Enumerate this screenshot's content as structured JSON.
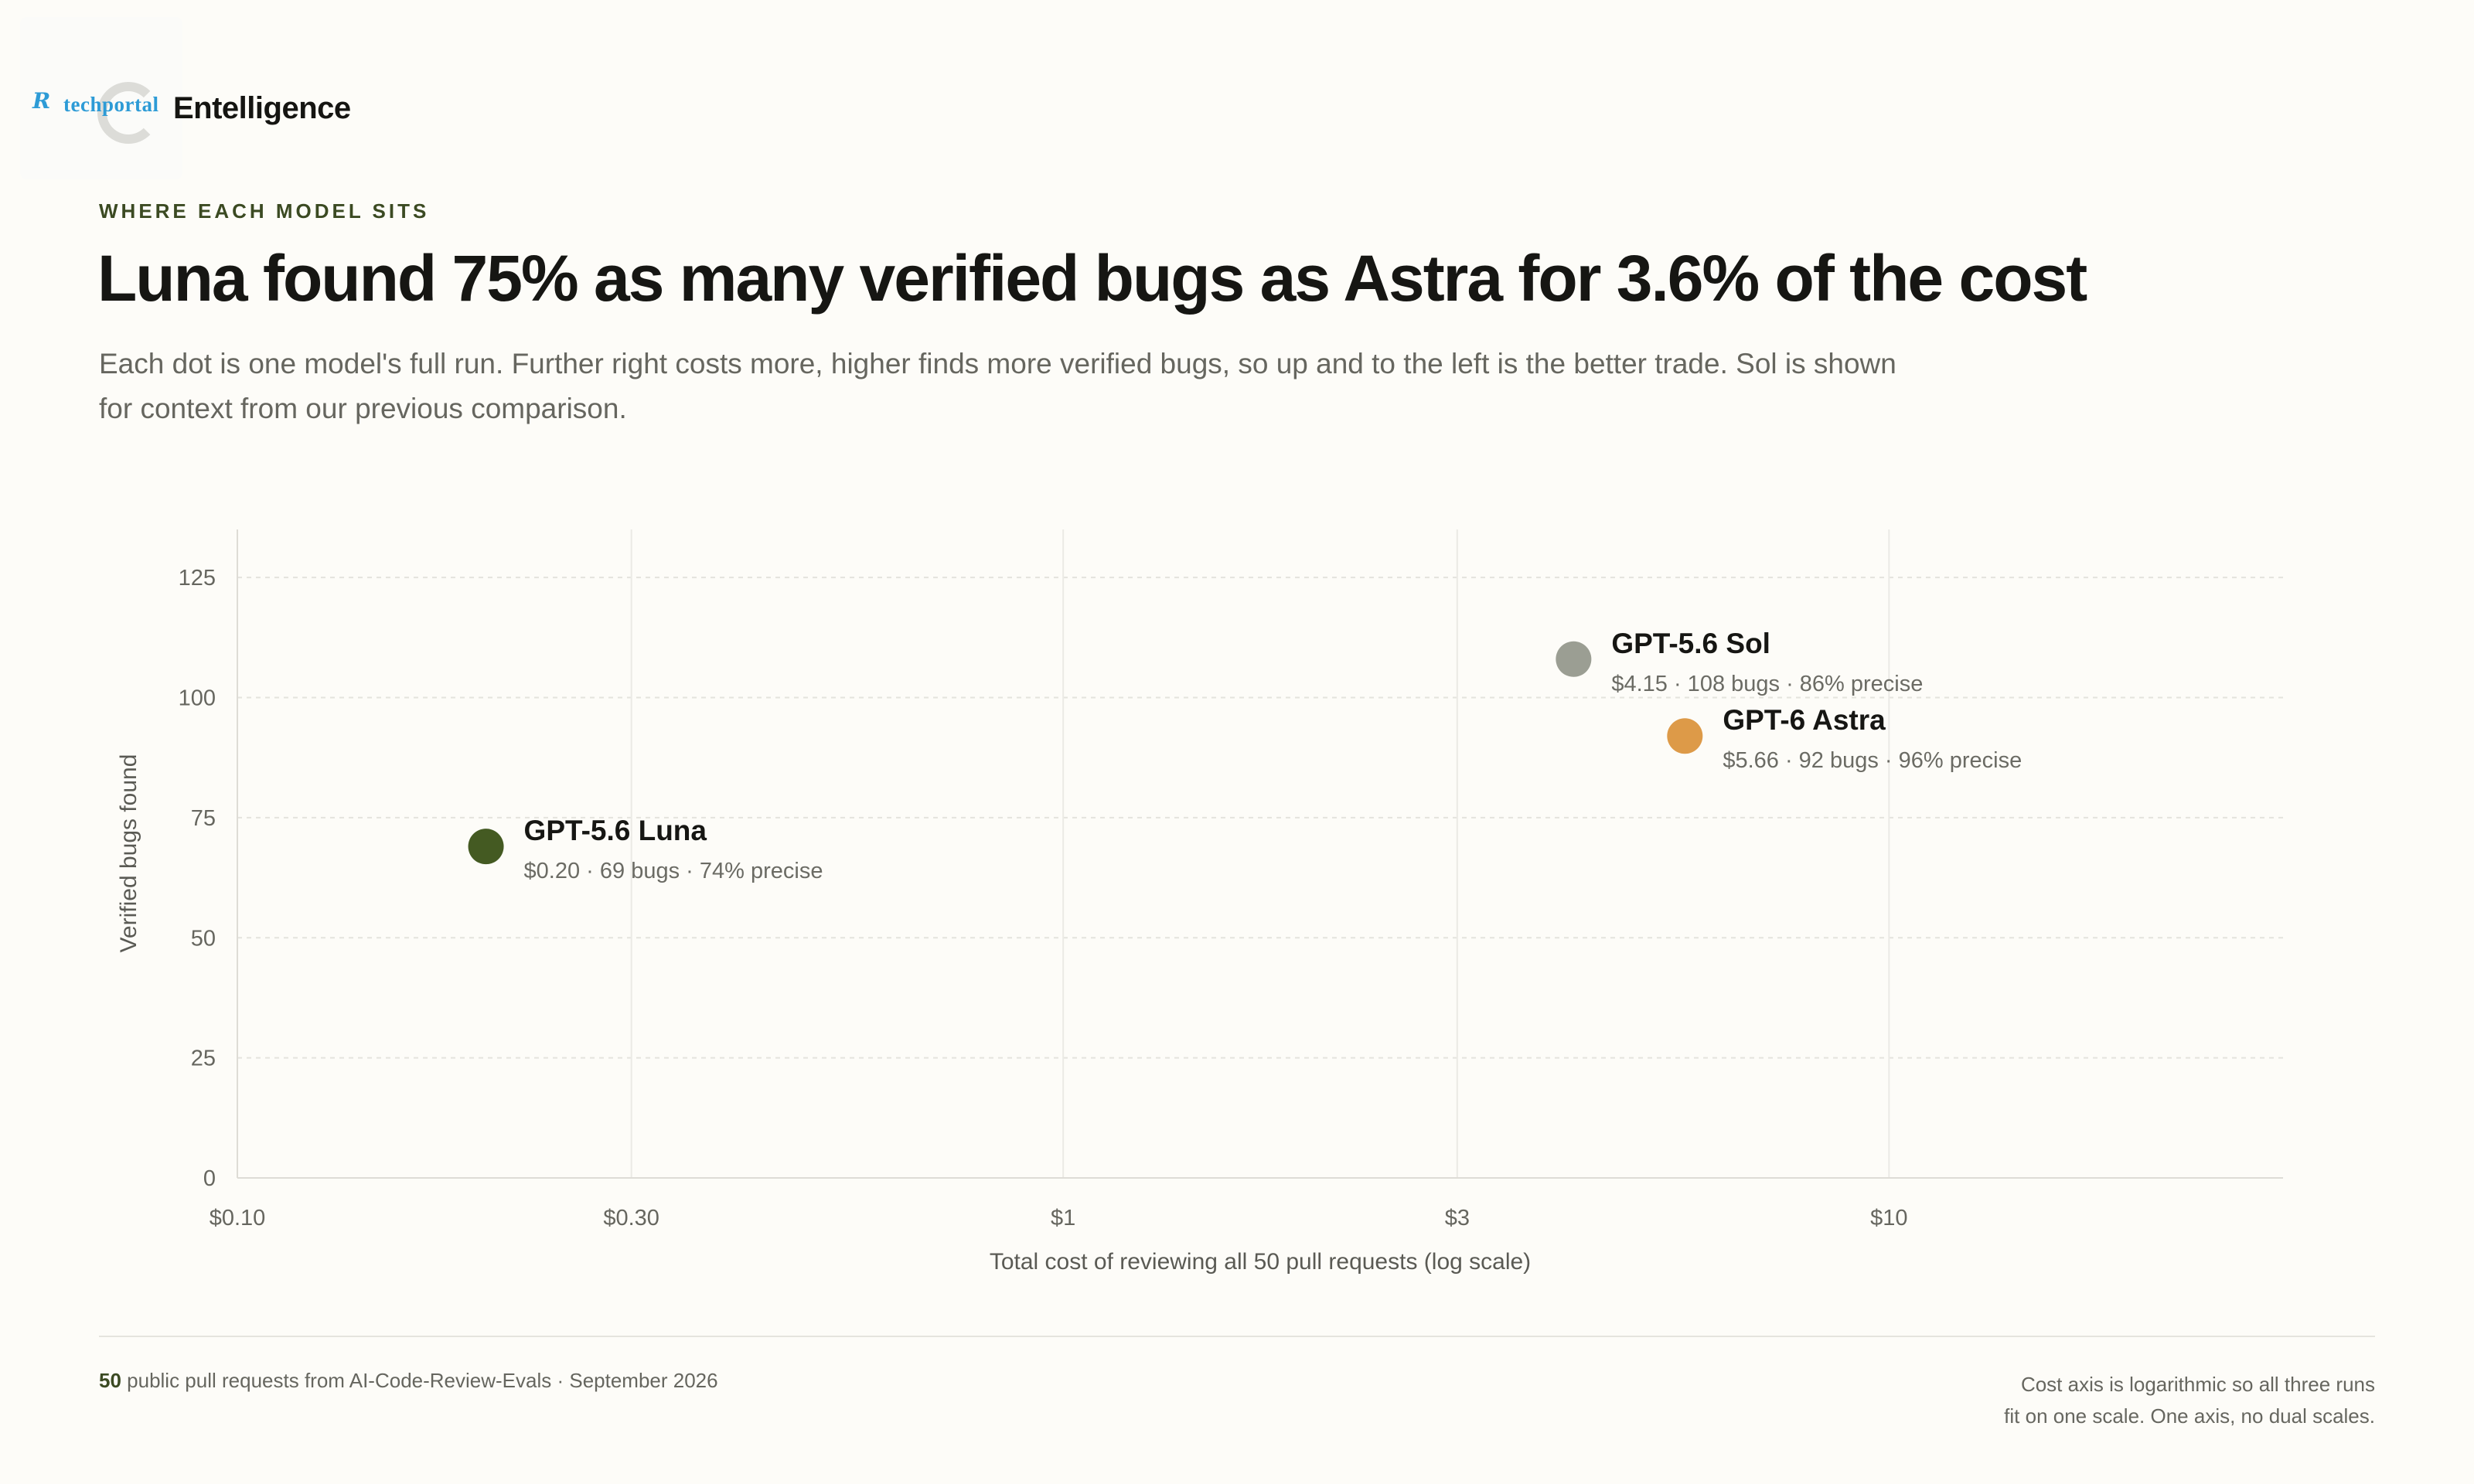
{
  "brand": {
    "mark": "R",
    "portal": "techportal",
    "name": "Entelligence"
  },
  "eyebrow": "WHERE EACH MODEL SITS",
  "headline": "Luna found 75% as many verified bugs as Astra for 3.6% of the cost",
  "subhead": "Each dot is one model's full run. Further right costs more, higher finds more verified bugs, so up and to the left is the better trade. Sol is shown for context from our previous comparison.",
  "chart_data": {
    "type": "scatter",
    "title": "",
    "xlabel": "Total cost of reviewing all 50 pull requests (log scale)",
    "ylabel": "Verified bugs found",
    "xscale": "log",
    "xlim": [
      0.1,
      30
    ],
    "ylim": [
      0,
      135
    ],
    "grid": true,
    "x_ticks": [
      {
        "value": 0.1,
        "label": "$0.10"
      },
      {
        "value": 0.3,
        "label": "$0.30"
      },
      {
        "value": 1,
        "label": "$1"
      },
      {
        "value": 3,
        "label": "$3"
      },
      {
        "value": 10,
        "label": "$10"
      }
    ],
    "y_ticks": [
      {
        "value": 0,
        "label": "0"
      },
      {
        "value": 25,
        "label": "25"
      },
      {
        "value": 50,
        "label": "50"
      },
      {
        "value": 75,
        "label": "75"
      },
      {
        "value": 100,
        "label": "100"
      },
      {
        "value": 125,
        "label": "125"
      }
    ],
    "points": [
      {
        "name": "GPT-5.6 Luna",
        "x": 0.2,
        "y": 69,
        "detail": "$0.20 · 69 bugs · 74% precise",
        "color": "#445a22"
      },
      {
        "name": "GPT-5.6 Sol",
        "x": 4.15,
        "y": 108,
        "detail": "$4.15 · 108 bugs · 86% precise",
        "color": "#9b9e93"
      },
      {
        "name": "GPT-6 Astra",
        "x": 5.66,
        "y": 92,
        "detail": "$5.66 · 92 bugs · 96% precise",
        "color": "#dd9a48"
      }
    ]
  },
  "footer": {
    "count": "50",
    "source": " public pull requests from AI-Code-Review-Evals · September 2026",
    "note_line1": "Cost axis is logarithmic so all three runs",
    "note_line2": "fit on one scale. One axis, no dual scales."
  }
}
